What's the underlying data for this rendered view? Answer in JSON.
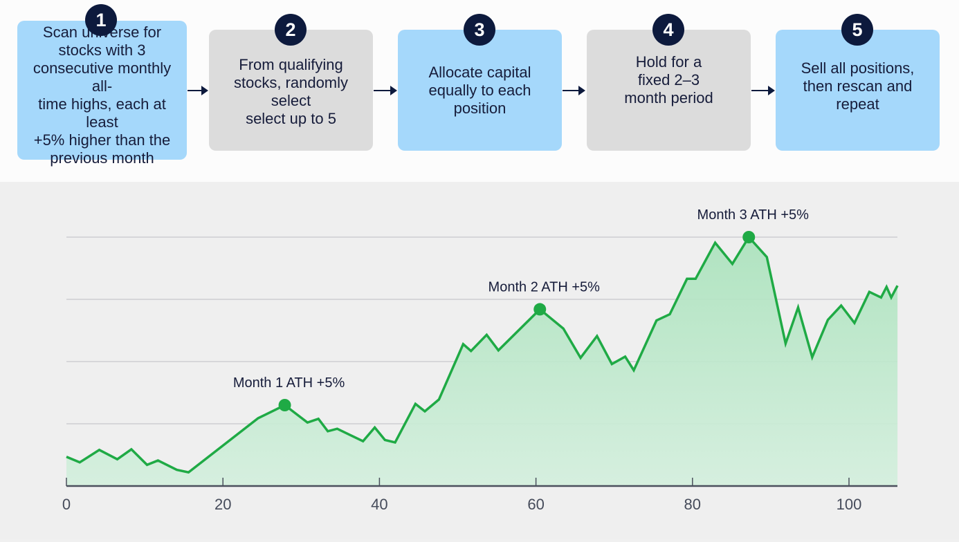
{
  "flow": {
    "steps": [
      {
        "number": "1",
        "text": "Scan universe for\nstocks with 3\nconsecutive monthly all-\ntime highs, each at least\n+5% higher than the\nprevious month",
        "color": "#a5d8fb"
      },
      {
        "number": "2",
        "text": "From qualifying\nstocks, randomly\nselect\nselect up to 5",
        "color": "#dcdcdc"
      },
      {
        "number": "3",
        "text": "Allocate capital\nequally to each\nposition",
        "color": "#a5d8fb"
      },
      {
        "number": "4",
        "text": "Hold for a\nfixed 2–3\nmonth period",
        "color": "#dcdcdc"
      },
      {
        "number": "5",
        "text": "Sell all positions,\nthen rescan and\nrepeat",
        "color": "#a5d8fb"
      }
    ],
    "badge_color": "#0d1a3d",
    "arrow_icon": "right-arrow-icon"
  },
  "chart_data": {
    "type": "area",
    "title": "",
    "xlabel": "",
    "ylabel": "",
    "x_ticks": [
      0,
      20,
      40,
      60,
      80,
      100
    ],
    "xlim": [
      0,
      106
    ],
    "y_gridlines": [
      1,
      2,
      3,
      4
    ],
    "ylim": [
      0,
      4.1
    ],
    "grid": true,
    "line_color": "#1faa45",
    "fill_color": "#bfe8cc",
    "points": [
      [
        0,
        0.47
      ],
      [
        1.7,
        0.38
      ],
      [
        4.2,
        0.58
      ],
      [
        6.5,
        0.43
      ],
      [
        8.3,
        0.59
      ],
      [
        10.3,
        0.34
      ],
      [
        11.7,
        0.41
      ],
      [
        14.1,
        0.26
      ],
      [
        15.6,
        0.22
      ],
      [
        24.5,
        1.09
      ],
      [
        27.9,
        1.3
      ],
      [
        30.8,
        1.02
      ],
      [
        32.2,
        1.08
      ],
      [
        33.4,
        0.88
      ],
      [
        34.6,
        0.92
      ],
      [
        37.9,
        0.72
      ],
      [
        39.4,
        0.94
      ],
      [
        40.7,
        0.74
      ],
      [
        42.0,
        0.7
      ],
      [
        44.6,
        1.32
      ],
      [
        45.8,
        1.2
      ],
      [
        47.6,
        1.39
      ],
      [
        50.7,
        2.28
      ],
      [
        51.7,
        2.17
      ],
      [
        53.7,
        2.43
      ],
      [
        55.2,
        2.18
      ],
      [
        60.5,
        2.84
      ],
      [
        63.5,
        2.53
      ],
      [
        65.7,
        2.06
      ],
      [
        67.8,
        2.41
      ],
      [
        69.7,
        1.96
      ],
      [
        71.4,
        2.08
      ],
      [
        72.5,
        1.86
      ],
      [
        75.4,
        2.66
      ],
      [
        77.1,
        2.76
      ],
      [
        79.3,
        3.33
      ],
      [
        80.4,
        3.33
      ],
      [
        82.9,
        3.91
      ],
      [
        85.1,
        3.57
      ],
      [
        87.2,
        4.0
      ],
      [
        89.5,
        3.68
      ],
      [
        91.9,
        2.29
      ],
      [
        93.5,
        2.87
      ],
      [
        95.3,
        2.07
      ],
      [
        97.3,
        2.67
      ],
      [
        99.0,
        2.9
      ],
      [
        100.7,
        2.62
      ],
      [
        102.6,
        3.12
      ],
      [
        104.1,
        3.03
      ],
      [
        104.8,
        3.2
      ],
      [
        105.4,
        3.03
      ],
      [
        106.2,
        3.22
      ]
    ],
    "annotations": [
      {
        "label": "Month 1 ATH +5%",
        "x": 27.9,
        "y": 1.3
      },
      {
        "label": "Month 2 ATH +5%",
        "x": 60.5,
        "y": 2.84
      },
      {
        "label": "Month 3 ATH +5%",
        "x": 87.2,
        "y": 4.0
      }
    ]
  }
}
